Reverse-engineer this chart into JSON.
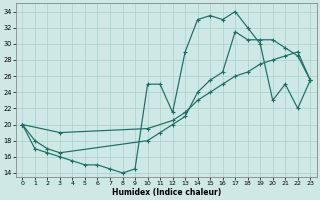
{
  "xlabel": "Humidex (Indice chaleur)",
  "xlim": [
    -0.5,
    23.5
  ],
  "ylim": [
    13.5,
    35
  ],
  "yticks": [
    14,
    16,
    18,
    20,
    22,
    24,
    26,
    28,
    30,
    32,
    34
  ],
  "xticks": [
    0,
    1,
    2,
    3,
    4,
    5,
    6,
    7,
    8,
    9,
    10,
    11,
    12,
    13,
    14,
    15,
    16,
    17,
    18,
    19,
    20,
    21,
    22,
    23
  ],
  "bg_color": "#cde8e5",
  "grid_color": "#b0d4d0",
  "line_color": "#1a6e62",
  "line1_x": [
    0,
    1,
    2,
    3,
    4,
    5,
    6,
    7,
    8,
    9,
    10,
    11,
    12,
    13,
    14,
    15,
    16,
    17,
    18,
    19,
    20,
    21,
    22,
    23
  ],
  "line1_y": [
    20,
    17,
    16.5,
    16,
    15.5,
    15,
    15,
    14.5,
    14,
    14.5,
    25,
    25,
    21.5,
    29,
    33,
    33.5,
    33,
    34,
    32,
    30,
    23,
    25,
    22,
    25.5
  ],
  "line2_x": [
    0,
    3,
    10,
    12,
    13,
    14,
    15,
    16,
    17,
    18,
    19,
    20,
    21,
    22,
    23
  ],
  "line2_y": [
    20,
    19,
    19.5,
    20.5,
    21.5,
    23,
    24,
    25,
    26,
    26.5,
    27.5,
    28,
    28.5,
    29,
    25.5
  ],
  "line3_x": [
    0,
    1,
    2,
    3,
    10,
    11,
    12,
    13,
    14,
    15,
    16,
    17,
    18,
    19,
    20,
    21,
    22,
    23
  ],
  "line3_y": [
    20,
    18,
    17,
    16.5,
    18,
    19,
    20,
    21,
    24,
    25.5,
    26.5,
    31.5,
    30.5,
    30.5,
    30.5,
    29.5,
    28.5,
    25.5
  ]
}
